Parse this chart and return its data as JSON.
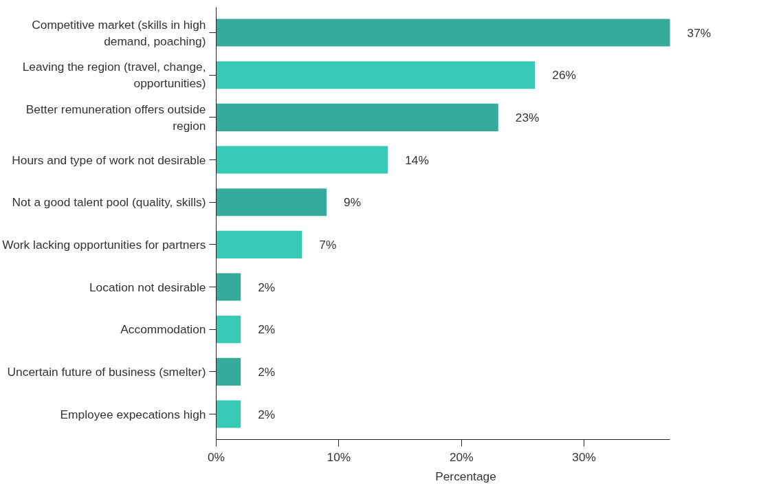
{
  "chart_data": {
    "type": "bar",
    "orientation": "horizontal",
    "xlabel": "Percentage",
    "categories": [
      "Competitive market (skills in high demand, poaching)",
      "Leaving the region (travel, change, opportunities)",
      "Better remuneration offers outside region",
      "Hours and type of work not desirable",
      "Not a good talent pool (quality, skills)",
      "Work lacking opportunities for partners",
      "Location not desirable",
      "Accommodation",
      "Uncertain future of business (smelter)",
      "Employee expecations high"
    ],
    "values": [
      37,
      26,
      23,
      14,
      9,
      7,
      2,
      2,
      2,
      2
    ],
    "colors": [
      "#36ab9c",
      "#36c9b6",
      "#36ab9c",
      "#36c9b6",
      "#36ab9c",
      "#36c9b6",
      "#36ab9c",
      "#36c9b6",
      "#36ab9c",
      "#36c9b6"
    ],
    "value_labels": [
      "37%",
      "26%",
      "23%",
      "14%",
      "9%",
      "7%",
      "2%",
      "2%",
      "2%",
      "2%"
    ],
    "xlim": [
      0,
      37
    ],
    "xticks": [
      {
        "value": 0,
        "label": "0%"
      },
      {
        "value": 10,
        "label": "10%"
      },
      {
        "value": 20,
        "label": "20%"
      },
      {
        "value": 30,
        "label": "30%"
      }
    ],
    "grid": false,
    "legend": false
  }
}
